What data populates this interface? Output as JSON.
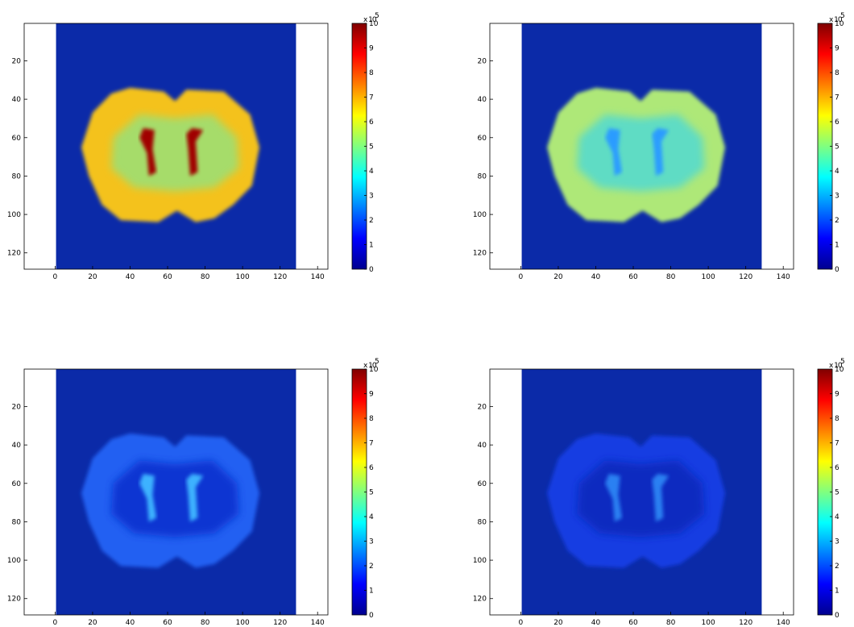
{
  "chart_data": [
    {
      "type": "image",
      "colormap": "jet",
      "background_color": "#0b2aa8",
      "brain_color": "#f4c21c",
      "inner_color": "#a6dc6a",
      "ventricle_color": "#a00000",
      "xlim": [
        -16.5,
        145.5
      ],
      "ylim": [
        0.5,
        128.5
      ],
      "xticks": [
        0,
        20,
        40,
        60,
        80,
        100,
        120,
        140
      ],
      "yticks": [
        20,
        40,
        60,
        80,
        100,
        120
      ],
      "colorbar": {
        "clim": [
          0,
          10
        ],
        "ticks": [
          0,
          1,
          2,
          3,
          4,
          5,
          6,
          7,
          8,
          9,
          10
        ],
        "multiplier": "x 10",
        "exponent": 5
      }
    },
    {
      "type": "image",
      "colormap": "jet",
      "background_color": "#0b2aa8",
      "brain_color": "#aee878",
      "inner_color": "#5edcc4",
      "ventricle_color": "#2a9cff",
      "xlim": [
        -16.5,
        145.5
      ],
      "ylim": [
        0.5,
        128.5
      ],
      "xticks": [
        0,
        20,
        40,
        60,
        80,
        100,
        120,
        140
      ],
      "yticks": [
        20,
        40,
        60,
        80,
        100,
        120
      ],
      "colorbar": {
        "clim": [
          0,
          10
        ],
        "ticks": [
          0,
          1,
          2,
          3,
          4,
          5,
          6,
          7,
          8,
          9,
          10
        ],
        "multiplier": "x 10",
        "exponent": 5
      }
    },
    {
      "type": "image",
      "colormap": "jet",
      "background_color": "#0b2aa8",
      "brain_color": "#2260f2",
      "inner_color": "#0d34d2",
      "ventricle_color": "#3cb2ff",
      "xlim": [
        -16.5,
        145.5
      ],
      "ylim": [
        0.5,
        128.5
      ],
      "xticks": [
        0,
        20,
        40,
        60,
        80,
        100,
        120,
        140
      ],
      "yticks": [
        20,
        40,
        60,
        80,
        100,
        120
      ],
      "colorbar": {
        "clim": [
          0,
          10
        ],
        "ticks": [
          0,
          1,
          2,
          3,
          4,
          5,
          6,
          7,
          8,
          9,
          10
        ],
        "multiplier": "x 10",
        "exponent": 5
      }
    },
    {
      "type": "image",
      "colormap": "jet",
      "background_color": "#0b2aa8",
      "brain_color": "#163ce2",
      "inner_color": "#0b2cc0",
      "ventricle_color": "#2a80f2",
      "xlim": [
        -16.5,
        145.5
      ],
      "ylim": [
        0.5,
        128.5
      ],
      "xticks": [
        0,
        20,
        40,
        60,
        80,
        100,
        120,
        140
      ],
      "yticks": [
        20,
        40,
        60,
        80,
        100,
        120
      ],
      "colorbar": {
        "clim": [
          0,
          10
        ],
        "ticks": [
          0,
          1,
          2,
          3,
          4,
          5,
          6,
          7,
          8,
          9,
          10
        ],
        "multiplier": "x 10",
        "exponent": 5
      }
    }
  ]
}
